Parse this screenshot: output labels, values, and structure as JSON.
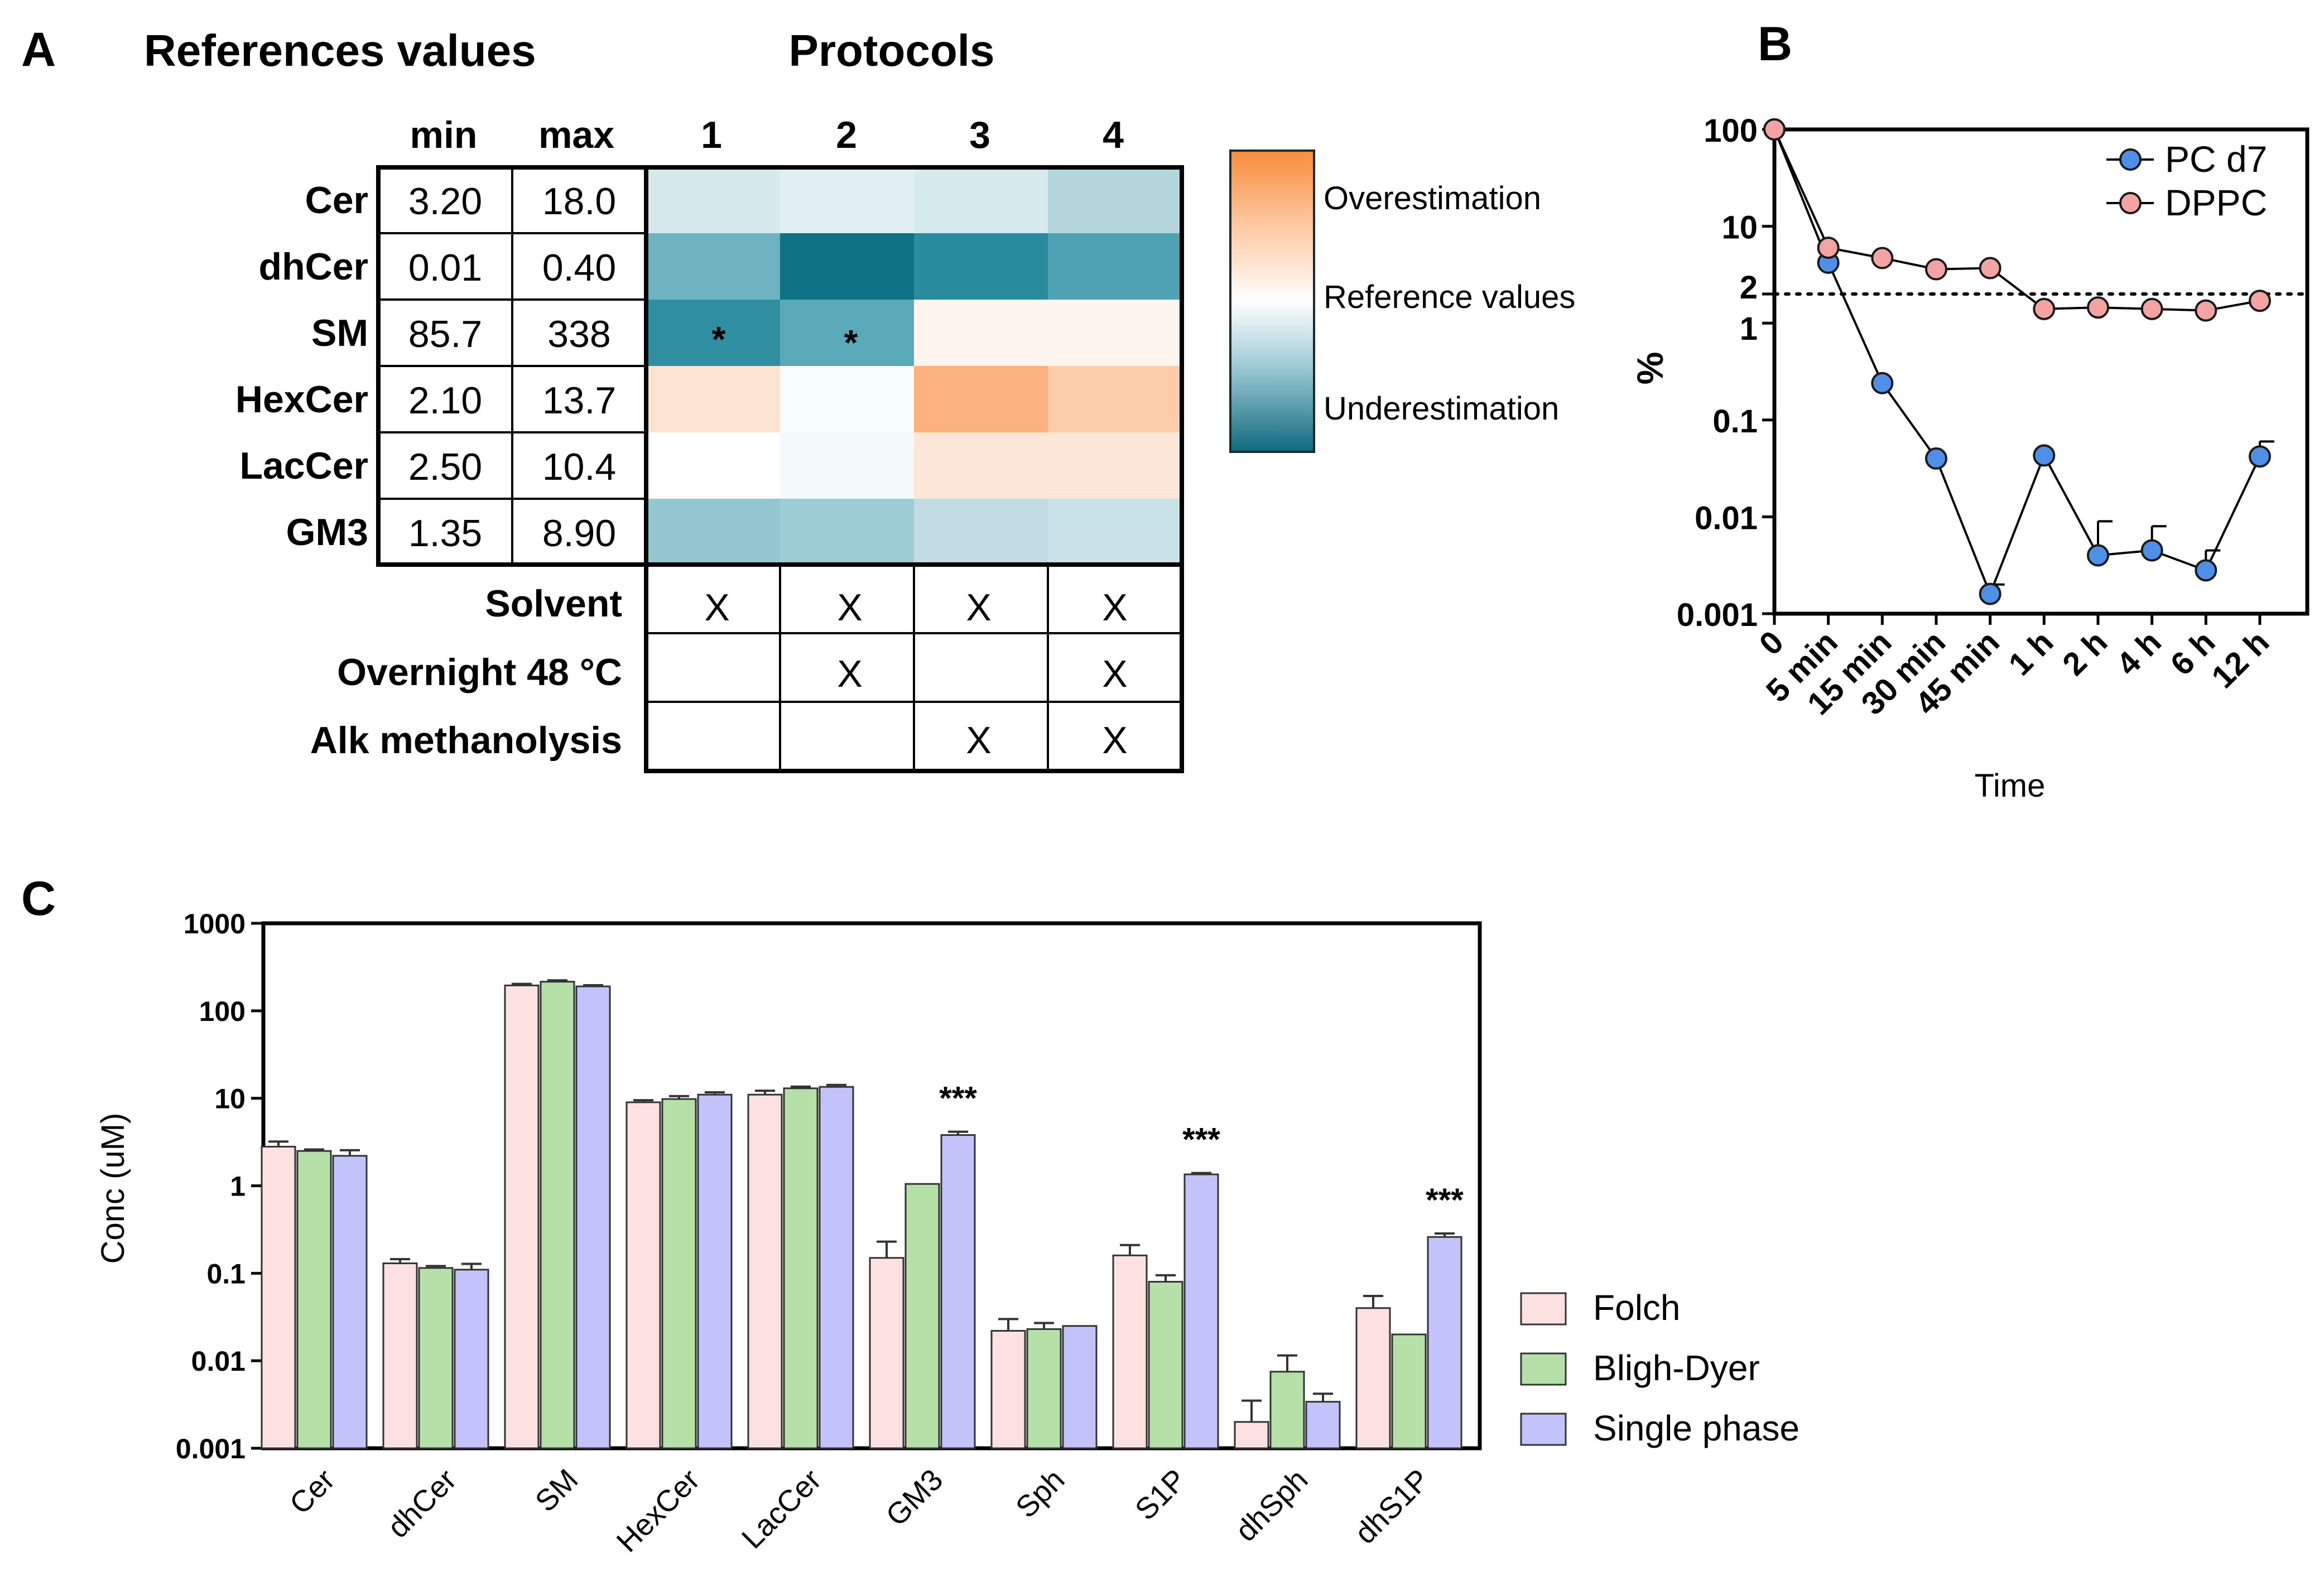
{
  "panel_labels": {
    "a": "A",
    "b": "B",
    "c": "C"
  },
  "panel_a": {
    "ref_title": "References values",
    "protocols_title": "Protocols",
    "ref_headers": [
      "min",
      "max"
    ],
    "protocol_headers": [
      "1",
      "2",
      "3",
      "4"
    ],
    "rows": [
      {
        "name": "Cer",
        "min": "3.20",
        "max": "18.0"
      },
      {
        "name": "dhCer",
        "min": "0.01",
        "max": "0.40"
      },
      {
        "name": "SM",
        "min": "85.7",
        "max": "338"
      },
      {
        "name": "HexCer",
        "min": "2.10",
        "max": "13.7"
      },
      {
        "name": "LacCer",
        "min": "2.50",
        "max": "10.4"
      },
      {
        "name": "GM3",
        "min": "1.35",
        "max": "8.90"
      }
    ],
    "heatmap_colors": [
      [
        "#d5e8ec",
        "#e1eff2",
        "#d7eaee",
        "#b4d6dd"
      ],
      [
        "#6fb3c1",
        "#0f7286",
        "#2a8b9f",
        "#4fa2b3"
      ],
      [
        "#2f8ea2",
        "#5aa9b8",
        "#fff5ee",
        "#fff5ee"
      ],
      [
        "#fde4d2",
        "#f7fcfd",
        "#fbb27e",
        "#fdcda9"
      ],
      [
        "#ffffff",
        "#f4fafc",
        "#fde7d8",
        "#fde7d8"
      ],
      [
        "#93c7d2",
        "#9fcdd6",
        "#c1dde3",
        "#c9e2e7"
      ]
    ],
    "significance": [
      {
        "row": 2,
        "col": 0,
        "text": "*"
      },
      {
        "row": 2,
        "col": 1,
        "text": "*"
      }
    ],
    "condition_rows": [
      {
        "name": "Solvent",
        "marks": [
          "X",
          "X",
          "X",
          "X"
        ]
      },
      {
        "name": "Overnight 48 °C",
        "marks": [
          "",
          "X",
          "",
          "X"
        ]
      },
      {
        "name": "Alk methanolysis",
        "marks": [
          "",
          "",
          "X",
          "X"
        ]
      }
    ],
    "colorbar": {
      "labels": [
        "Overestimation",
        "Reference values",
        "Underestimation"
      ],
      "colors": {
        "over": "#f98c3b",
        "ref": "#ffffff",
        "under": "#0f6a7e"
      }
    }
  },
  "chart_data": [
    {
      "type": "line",
      "panel": "B",
      "x": [
        "0",
        "5 min",
        "15 min",
        "30 min",
        "45 min",
        "1 h",
        "2 h",
        "4 h",
        "6 h",
        "12 h"
      ],
      "xlabel": "Time",
      "ylabel": "%",
      "yscale": "log",
      "ylim": [
        0.001,
        100
      ],
      "yticks": [
        "100",
        "10",
        "2",
        "1",
        "0.1",
        "0.01",
        "0.001"
      ],
      "reference_line": 2,
      "series": [
        {
          "name": "PC d7",
          "color": "#4e8fe8",
          "values": [
            100,
            4.2,
            0.24,
            0.04,
            0.0016,
            0.043,
            0.004,
            0.0045,
            0.0028,
            0.042
          ],
          "error_up": [
            0,
            0,
            0,
            0,
            0.0004,
            0,
            0.005,
            0.0035,
            0.0017,
            0.018
          ]
        },
        {
          "name": "DPPC",
          "color": "#f4a3a3",
          "values": [
            100,
            6.0,
            4.7,
            3.6,
            3.7,
            1.4,
            1.45,
            1.4,
            1.35,
            1.7
          ],
          "error_up": [
            0,
            0,
            0,
            0,
            0,
            0,
            0,
            0,
            0,
            0
          ]
        }
      ]
    },
    {
      "type": "bar",
      "panel": "C",
      "categories": [
        "Cer",
        "dhCer",
        "SM",
        "HexCer",
        "LacCer",
        "GM3",
        "Sph",
        "S1P",
        "dhSph",
        "dhS1P"
      ],
      "ylabel": "Conc (uM)",
      "yscale": "log",
      "ylim": [
        0.001,
        1000
      ],
      "yticks": [
        "1000",
        "100",
        "10",
        "1",
        "0.1",
        "0.01",
        "0.001"
      ],
      "series": [
        {
          "name": "Folch",
          "color": "#fde0e0",
          "values": [
            2.8,
            0.13,
            195,
            9.0,
            11.0,
            0.15,
            0.022,
            0.16,
            0.002,
            0.04
          ],
          "error_up": [
            0.4,
            0.015,
            8,
            0.5,
            1.2,
            0.08,
            0.008,
            0.05,
            0.0015,
            0.015
          ]
        },
        {
          "name": "Bligh-Dyer",
          "color": "#b5e0a8",
          "values": [
            2.5,
            0.115,
            215,
            9.8,
            13.0,
            1.05,
            0.023,
            0.08,
            0.0075,
            0.02
          ],
          "error_up": [
            0.1,
            0.006,
            8,
            0.8,
            0.6,
            0,
            0.004,
            0.015,
            0.004,
            0
          ]
        },
        {
          "name": "Single phase",
          "color": "#c3c3fb",
          "values": [
            2.2,
            0.11,
            190,
            11.0,
            13.5,
            3.8,
            0.025,
            1.35,
            0.0034,
            0.26
          ],
          "error_up": [
            0.35,
            0.018,
            6,
            0.7,
            0.7,
            0.35,
            0,
            0.05,
            0.0008,
            0.025
          ]
        }
      ],
      "significance": [
        {
          "category": "GM3",
          "text": "***"
        },
        {
          "category": "S1P",
          "text": "***"
        },
        {
          "category": "dhS1P",
          "text": "***"
        }
      ]
    }
  ]
}
